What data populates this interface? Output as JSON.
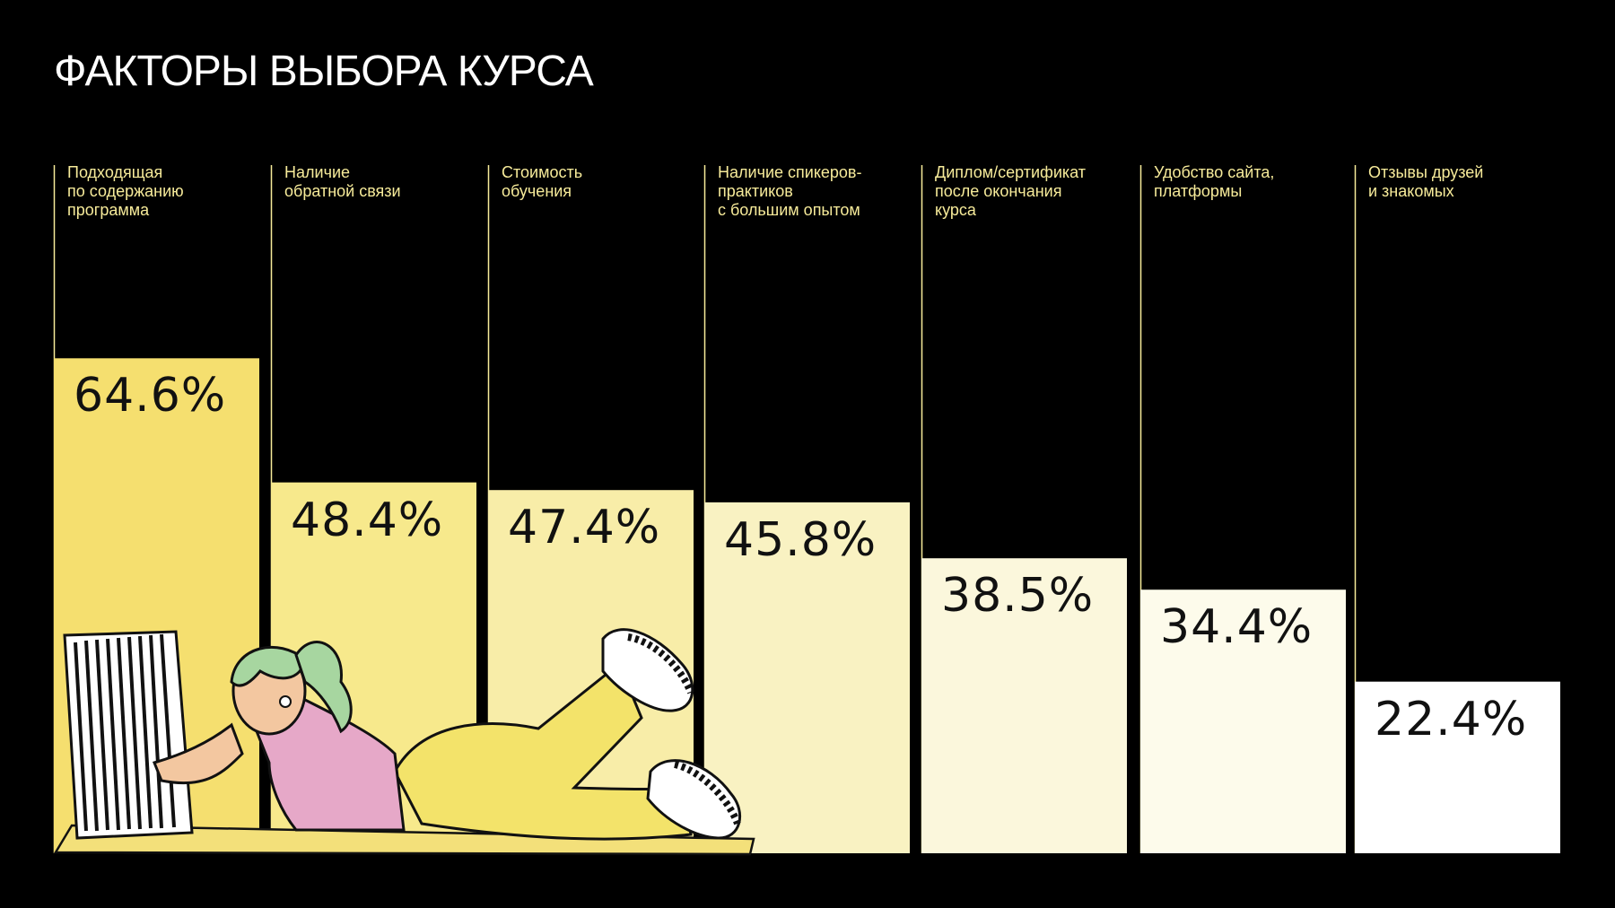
{
  "title": "ФАКТОРЫ ВЫБОРА КУРСА",
  "chart_data": {
    "type": "bar",
    "title": "ФАКТОРЫ ВЫБОРА КУРСА",
    "categories": [
      "Подходящая\nпо содержанию\nпрограмма",
      "Наличие\nобратной связи",
      "Стоимость\nобучения",
      "Наличие спикеров-\nпрактиков\nс большим опытом",
      "Диплом/сертификат\nпосле окончания\nкурса",
      "Удобство сайта,\nплатформы",
      "Отзывы друзей\nи знакомых"
    ],
    "values": [
      64.6,
      48.4,
      47.4,
      45.8,
      38.5,
      34.4,
      22.4
    ],
    "value_labels": [
      "64.6%",
      "48.4%",
      "47.4%",
      "45.8%",
      "38.5%",
      "34.4%",
      "22.4%"
    ],
    "unit": "%",
    "ylim": [
      0,
      100
    ],
    "grid": false,
    "legend": "none"
  },
  "colors": {
    "background": "#000000",
    "divider": "#f7eb9a",
    "label": "#f7eb9a",
    "bars": [
      "#f5df6f",
      "#f7e98c",
      "#f8eda8",
      "#f9f2c2",
      "#fbf7dc",
      "#fdfbeb",
      "#ffffff"
    ]
  }
}
